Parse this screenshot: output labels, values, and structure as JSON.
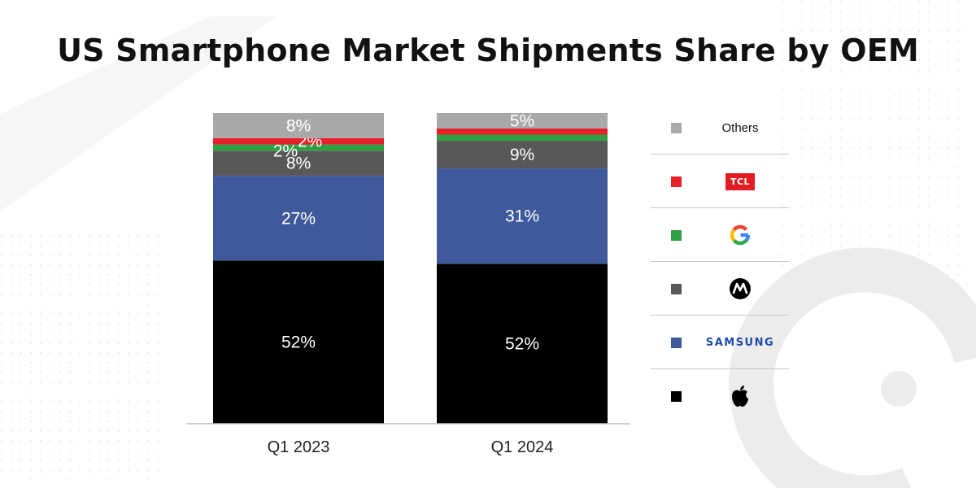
{
  "title": "US Smartphone Market Shipments Share by OEM",
  "chart_data": {
    "type": "bar",
    "stacked": true,
    "normalized": true,
    "categories": [
      "Q1 2023",
      "Q1 2024"
    ],
    "ylim": [
      0,
      100
    ],
    "series": [
      {
        "name": "Apple",
        "color": "#000000",
        "values": [
          52,
          52
        ],
        "labels": [
          "52%",
          "52%"
        ]
      },
      {
        "name": "Samsung",
        "color": "#3e5a9c",
        "values": [
          27,
          31
        ],
        "labels": [
          "27%",
          "31%"
        ]
      },
      {
        "name": "Motorola",
        "color": "#585858",
        "values": [
          8,
          9
        ],
        "labels": [
          "8%",
          "9%"
        ]
      },
      {
        "name": "Google",
        "color": "#2ea043",
        "values": [
          2,
          2
        ],
        "labels": [
          "2%",
          ""
        ]
      },
      {
        "name": "TCL",
        "color": "#e8202a",
        "values": [
          2,
          2
        ],
        "labels": [
          "2%",
          ""
        ]
      },
      {
        "name": "Others",
        "color": "#a9a9a9",
        "values": [
          8,
          5
        ],
        "labels": [
          "8%",
          "5%"
        ]
      }
    ],
    "legend_position": "right"
  },
  "legend": {
    "others_label": "Others",
    "tcl_logo_text": "TCL",
    "samsung_logo_text": "SAMSUNG"
  }
}
